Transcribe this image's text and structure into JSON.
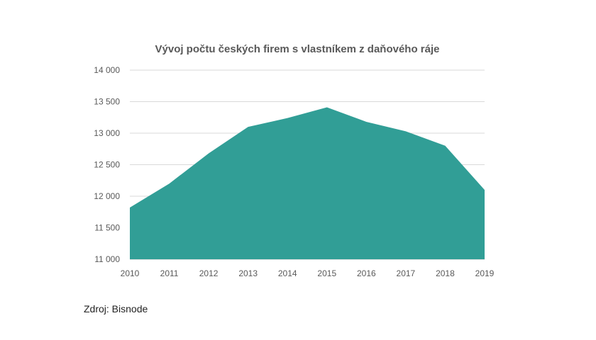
{
  "chart_data": {
    "type": "area",
    "title": "Vývoj počtu českých firem s vlastníkem z daňového ráje",
    "x": [
      2010,
      2011,
      2012,
      2013,
      2014,
      2015,
      2016,
      2017,
      2018,
      2019
    ],
    "series": [
      {
        "values": [
          11820,
          12200,
          12680,
          13100,
          13240,
          13410,
          13180,
          13030,
          12800,
          12100
        ]
      }
    ],
    "ylim": [
      11000,
      14000
    ],
    "yticks": [
      11000,
      11500,
      12000,
      12500,
      13000,
      13500,
      14000
    ],
    "ytick_labels": [
      "11 000",
      "11 500",
      "12 000",
      "12 500",
      "13 000",
      "13 500",
      "14 000"
    ],
    "xlabel": "",
    "ylabel": "",
    "grid": true,
    "color": "#319e96"
  },
  "source": {
    "text": "Zdroj: Bisnode"
  }
}
